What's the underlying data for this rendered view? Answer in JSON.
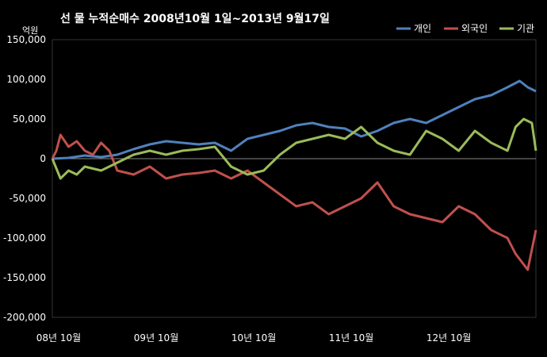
{
  "chart_data": {
    "type": "line",
    "title": "선 물 누적순매수 2008년10월 1일~2013년 9월17일",
    "ylabel": "억원",
    "ylim": [
      -200000,
      150000
    ],
    "y_ticks": [
      "150,000",
      "100,000",
      "50,000",
      "0",
      "-50,000",
      "-100,000",
      "-150,000",
      "-200,000"
    ],
    "y_tick_values": [
      150000,
      100000,
      50000,
      0,
      -50000,
      -100000,
      -150000,
      -200000
    ],
    "x_ticks": [
      "08년 10월",
      "09년 10월",
      "10년 10월",
      "11년 10월",
      "12년 10월"
    ],
    "x_tick_values": [
      0,
      12,
      24,
      36,
      48
    ],
    "x_max": 59.5,
    "legend_position": "top-right",
    "grid": false,
    "series": [
      {
        "name": "개인",
        "color": "#4f81bd",
        "x": [
          0,
          2,
          4,
          6,
          8,
          10,
          12,
          14,
          16,
          18,
          20,
          22,
          24,
          26,
          28,
          30,
          32,
          34,
          36,
          38,
          40,
          42,
          44,
          46,
          48,
          50,
          52,
          54,
          56,
          57.5,
          58.5,
          59.5
        ],
        "values": [
          0,
          1000,
          4000,
          2000,
          5000,
          12000,
          18000,
          22000,
          20000,
          18000,
          20000,
          10000,
          25000,
          30000,
          35000,
          42000,
          45000,
          40000,
          38000,
          28000,
          35000,
          45000,
          50000,
          45000,
          55000,
          65000,
          75000,
          80000,
          90000,
          98000,
          90000,
          85000
        ]
      },
      {
        "name": "외국인",
        "color": "#c0504d",
        "x": [
          0,
          0.5,
          1,
          2,
          3,
          4,
          5,
          6,
          7,
          8,
          10,
          12,
          14,
          16,
          18,
          20,
          22,
          24,
          26,
          28,
          30,
          32,
          34,
          36,
          38,
          40,
          42,
          44,
          46,
          48,
          50,
          52,
          54,
          56,
          57,
          58.5,
          59.5
        ],
        "values": [
          0,
          10000,
          30000,
          15000,
          22000,
          10000,
          5000,
          20000,
          10000,
          -15000,
          -20000,
          -10000,
          -25000,
          -20000,
          -18000,
          -15000,
          -25000,
          -15000,
          -30000,
          -45000,
          -60000,
          -55000,
          -70000,
          -60000,
          -50000,
          -30000,
          -60000,
          -70000,
          -75000,
          -80000,
          -60000,
          -70000,
          -90000,
          -100000,
          -120000,
          -140000,
          -90000
        ]
      },
      {
        "name": "기관",
        "color": "#9bbb59",
        "x": [
          0,
          1,
          2,
          3,
          4,
          6,
          8,
          10,
          12,
          14,
          16,
          18,
          20,
          22,
          24,
          26,
          28,
          30,
          32,
          34,
          36,
          38,
          40,
          42,
          44,
          46,
          48,
          50,
          52,
          54,
          56,
          57,
          58,
          59,
          59.5
        ],
        "values": [
          0,
          -25000,
          -15000,
          -20000,
          -10000,
          -15000,
          -5000,
          5000,
          10000,
          5000,
          10000,
          12000,
          15000,
          -10000,
          -20000,
          -15000,
          5000,
          20000,
          25000,
          30000,
          25000,
          40000,
          20000,
          10000,
          5000,
          35000,
          25000,
          10000,
          35000,
          20000,
          10000,
          40000,
          50000,
          45000,
          10000
        ]
      }
    ]
  }
}
